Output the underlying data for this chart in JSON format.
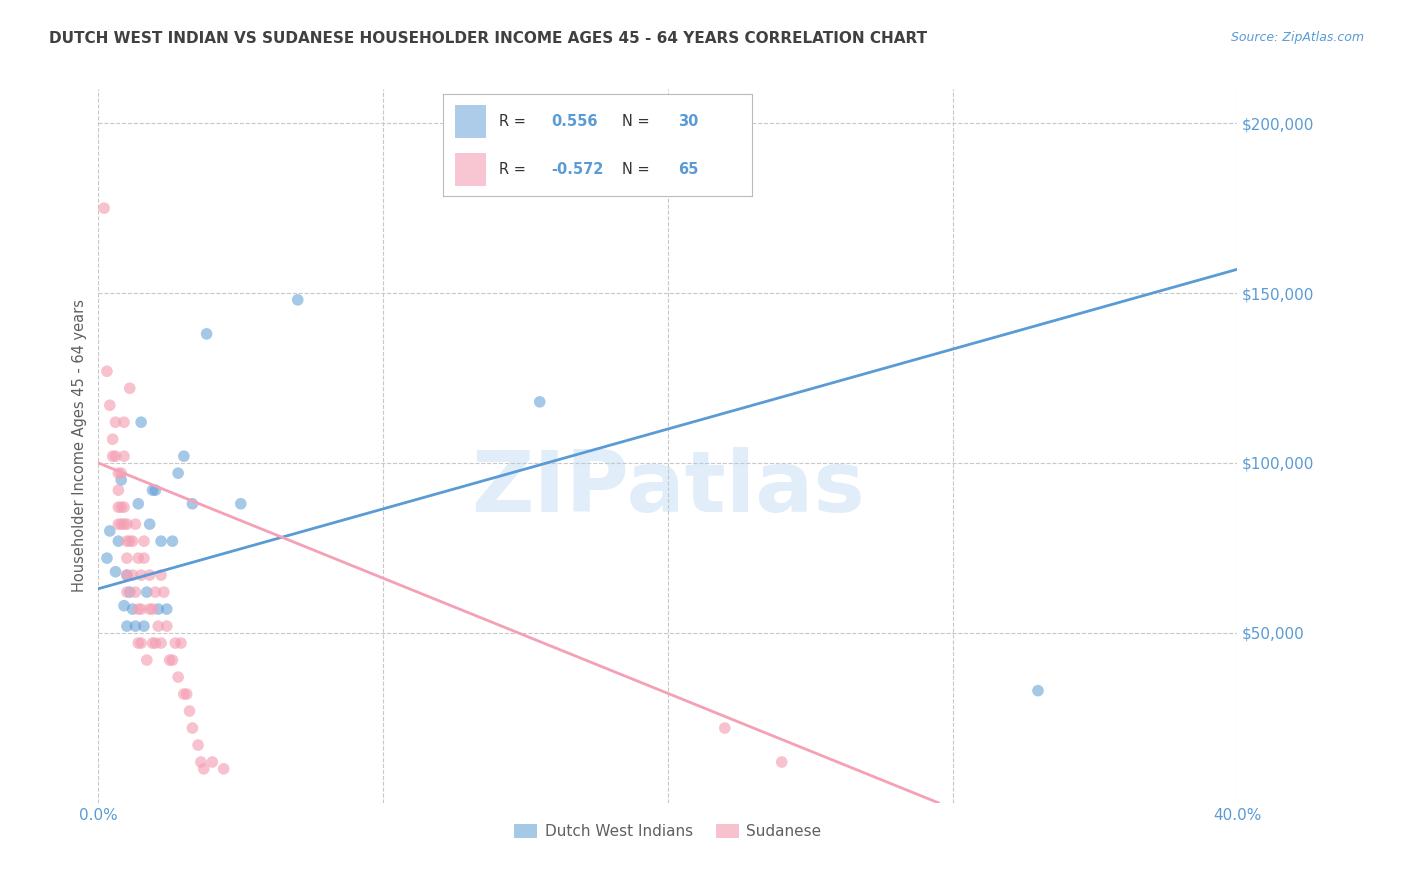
{
  "title": "DUTCH WEST INDIAN VS SUDANESE HOUSEHOLDER INCOME AGES 45 - 64 YEARS CORRELATION CHART",
  "source": "Source: ZipAtlas.com",
  "ylabel": "Householder Income Ages 45 - 64 years",
  "xlim": [
    0.0,
    0.4
  ],
  "ylim": [
    0,
    210000
  ],
  "xticks": [
    0.0,
    0.1,
    0.2,
    0.3,
    0.4
  ],
  "xtick_labels": [
    "0.0%",
    "",
    "",
    "",
    "40.0%"
  ],
  "ytick_values": [
    50000,
    100000,
    150000,
    200000
  ],
  "background_color": "#ffffff",
  "grid_color": "#c8c8c8",
  "watermark": "ZIPatlas",
  "blue_color": "#5b9bd5",
  "pink_color": "#f4a0b5",
  "title_color": "#404040",
  "axis_label_color": "#5b9bd5",
  "ylabel_color": "#606060",
  "legend_r_blue": "0.556",
  "legend_n_blue": "30",
  "legend_r_pink": "-0.572",
  "legend_n_pink": "65",
  "legend_label_blue": "Dutch West Indians",
  "legend_label_pink": "Sudanese",
  "blue_line_x": [
    0.0,
    0.4
  ],
  "blue_line_y": [
    63000,
    157000
  ],
  "pink_line_x": [
    0.0,
    0.295
  ],
  "pink_line_y": [
    100000,
    0
  ],
  "blue_scatter_x": [
    0.003,
    0.004,
    0.006,
    0.007,
    0.008,
    0.009,
    0.01,
    0.01,
    0.011,
    0.012,
    0.013,
    0.014,
    0.015,
    0.016,
    0.017,
    0.018,
    0.019,
    0.02,
    0.021,
    0.022,
    0.024,
    0.026,
    0.028,
    0.03,
    0.033,
    0.038,
    0.05,
    0.07,
    0.155,
    0.33
  ],
  "blue_scatter_y": [
    72000,
    80000,
    68000,
    77000,
    95000,
    58000,
    67000,
    52000,
    62000,
    57000,
    52000,
    88000,
    112000,
    52000,
    62000,
    82000,
    92000,
    92000,
    57000,
    77000,
    57000,
    77000,
    97000,
    102000,
    88000,
    138000,
    88000,
    148000,
    118000,
    33000
  ],
  "pink_scatter_x": [
    0.002,
    0.003,
    0.004,
    0.005,
    0.005,
    0.006,
    0.006,
    0.007,
    0.007,
    0.007,
    0.007,
    0.008,
    0.008,
    0.008,
    0.009,
    0.009,
    0.009,
    0.009,
    0.01,
    0.01,
    0.01,
    0.01,
    0.01,
    0.011,
    0.011,
    0.012,
    0.012,
    0.013,
    0.013,
    0.014,
    0.014,
    0.014,
    0.015,
    0.015,
    0.015,
    0.016,
    0.016,
    0.017,
    0.018,
    0.018,
    0.019,
    0.019,
    0.02,
    0.02,
    0.021,
    0.022,
    0.022,
    0.023,
    0.024,
    0.025,
    0.026,
    0.027,
    0.028,
    0.029,
    0.03,
    0.031,
    0.032,
    0.033,
    0.035,
    0.036,
    0.037,
    0.04,
    0.044,
    0.22,
    0.24
  ],
  "pink_scatter_y": [
    175000,
    127000,
    117000,
    107000,
    102000,
    112000,
    102000,
    97000,
    92000,
    87000,
    82000,
    97000,
    87000,
    82000,
    112000,
    102000,
    87000,
    82000,
    82000,
    77000,
    72000,
    67000,
    62000,
    122000,
    77000,
    67000,
    77000,
    62000,
    82000,
    57000,
    72000,
    47000,
    47000,
    67000,
    57000,
    72000,
    77000,
    42000,
    57000,
    67000,
    47000,
    57000,
    47000,
    62000,
    52000,
    47000,
    67000,
    62000,
    52000,
    42000,
    42000,
    47000,
    37000,
    47000,
    32000,
    32000,
    27000,
    22000,
    17000,
    12000,
    10000,
    12000,
    10000,
    22000,
    12000
  ]
}
